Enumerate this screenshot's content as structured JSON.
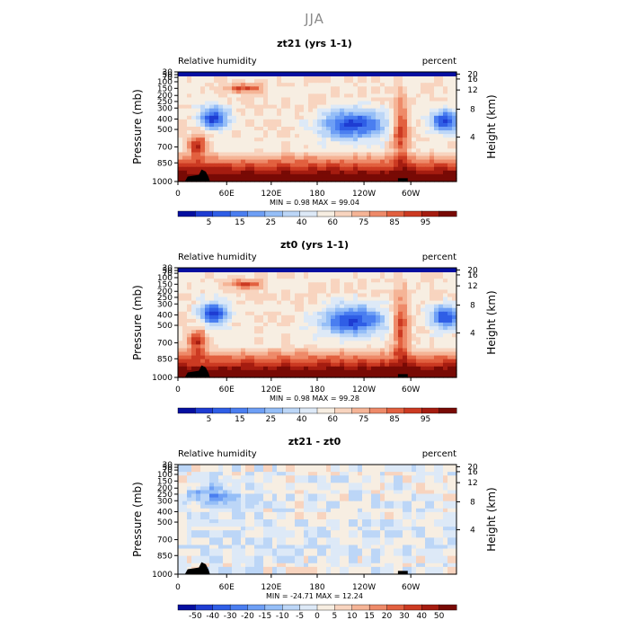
{
  "page": {
    "title": "JJA"
  },
  "chart_data": [
    {
      "type": "heatmap",
      "title": "zt21 (yrs 1-1)",
      "left_label": "Relative humidity",
      "right_label": "percent",
      "ylabel": "Pressure (mb)",
      "y2label": "Height (km)",
      "x_ticks": [
        "0",
        "60E",
        "120E",
        "180",
        "120W",
        "60W"
      ],
      "y_ticks": [
        "30",
        "50",
        "70",
        "100",
        "150",
        "200",
        "250",
        "300",
        "400",
        "500",
        "700",
        "850",
        "1000"
      ],
      "y2_ticks": [
        "20",
        "16",
        "12",
        "8",
        "4"
      ],
      "stats": "MIN =    0.98   MAX =   99.04",
      "min": 0.98,
      "max": 99.04,
      "colorbar_labels": [
        "5",
        "15",
        "25",
        "40",
        "60",
        "75",
        "85",
        "95"
      ],
      "colorbar_colors": [
        "#050fa0",
        "#1e3cd2",
        "#2f5ee6",
        "#4a7ef0",
        "#6e9ff5",
        "#95bef7",
        "#bcd6f7",
        "#dde9f7",
        "#f7eee2",
        "#f8d4bf",
        "#f5b496",
        "#ee8a69",
        "#e2603f",
        "#cc3a22",
        "#a51c10",
        "#780a05"
      ]
    },
    {
      "type": "heatmap",
      "title": "zt0 (yrs 1-1)",
      "left_label": "Relative humidity",
      "right_label": "percent",
      "ylabel": "Pressure (mb)",
      "y2label": "Height (km)",
      "x_ticks": [
        "0",
        "60E",
        "120E",
        "180",
        "120W",
        "60W"
      ],
      "y_ticks": [
        "30",
        "50",
        "70",
        "100",
        "150",
        "200",
        "250",
        "300",
        "400",
        "500",
        "700",
        "850",
        "1000"
      ],
      "y2_ticks": [
        "20",
        "16",
        "12",
        "8",
        "4"
      ],
      "stats": "MIN =    0.98   MAX =   99.28",
      "min": 0.98,
      "max": 99.28,
      "colorbar_labels": [
        "5",
        "15",
        "25",
        "40",
        "60",
        "75",
        "85",
        "95"
      ],
      "colorbar_colors": [
        "#050fa0",
        "#1e3cd2",
        "#2f5ee6",
        "#4a7ef0",
        "#6e9ff5",
        "#95bef7",
        "#bcd6f7",
        "#dde9f7",
        "#f7eee2",
        "#f8d4bf",
        "#f5b496",
        "#ee8a69",
        "#e2603f",
        "#cc3a22",
        "#a51c10",
        "#780a05"
      ]
    },
    {
      "type": "heatmap",
      "title": "zt21 - zt0",
      "left_label": "Relative humidity",
      "right_label": "percent",
      "ylabel": "Pressure (mb)",
      "y2label": "Height (km)",
      "x_ticks": [
        "0",
        "60E",
        "120E",
        "180",
        "120W",
        "60W"
      ],
      "y_ticks": [
        "30",
        "50",
        "70",
        "100",
        "150",
        "200",
        "250",
        "300",
        "400",
        "500",
        "700",
        "850",
        "1000"
      ],
      "y2_ticks": [
        "20",
        "16",
        "12",
        "8",
        "4"
      ],
      "stats": "MIN =  -24.71   MAX =   12.24",
      "min": -24.71,
      "max": 12.24,
      "colorbar_labels": [
        "-50",
        "-40",
        "-30",
        "-20",
        "-15",
        "-10",
        "-5",
        "0",
        "5",
        "10",
        "15",
        "20",
        "30",
        "40",
        "50"
      ],
      "colorbar_colors": [
        "#050fa0",
        "#1e3cd2",
        "#2f5ee6",
        "#4a7ef0",
        "#6e9ff5",
        "#95bef7",
        "#bcd6f7",
        "#dde9f7",
        "#f7eee2",
        "#f8d4bf",
        "#f5b496",
        "#ee8a69",
        "#e2603f",
        "#cc3a22",
        "#a51c10",
        "#780a05"
      ]
    }
  ]
}
